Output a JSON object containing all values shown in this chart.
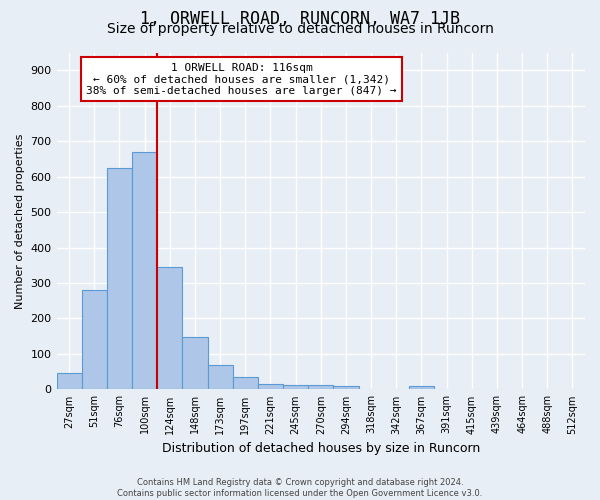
{
  "title": "1, ORWELL ROAD, RUNCORN, WA7 1JB",
  "subtitle": "Size of property relative to detached houses in Runcorn",
  "xlabel": "Distribution of detached houses by size in Runcorn",
  "ylabel": "Number of detached properties",
  "bar_labels": [
    "27sqm",
    "51sqm",
    "76sqm",
    "100sqm",
    "124sqm",
    "148sqm",
    "173sqm",
    "197sqm",
    "221sqm",
    "245sqm",
    "270sqm",
    "294sqm",
    "318sqm",
    "342sqm",
    "367sqm",
    "391sqm",
    "415sqm",
    "439sqm",
    "464sqm",
    "488sqm",
    "512sqm"
  ],
  "bar_values": [
    45,
    280,
    625,
    670,
    345,
    148,
    68,
    35,
    15,
    13,
    12,
    10,
    0,
    0,
    10,
    0,
    0,
    0,
    0,
    0,
    0
  ],
  "bar_color": "#aec6e8",
  "bar_edgecolor": "#5b9bd5",
  "vline_x": 4,
  "vline_color": "#cc0000",
  "annotation_text": "1 ORWELL ROAD: 116sqm\n← 60% of detached houses are smaller (1,342)\n38% of semi-detached houses are larger (847) →",
  "annotation_box_color": "#ffffff",
  "annotation_box_edgecolor": "#cc0000",
  "ylim": [
    0,
    950
  ],
  "yticks": [
    0,
    100,
    200,
    300,
    400,
    500,
    600,
    700,
    800,
    900
  ],
  "background_color": "#e8eef5",
  "grid_color": "#ffffff",
  "title_fontsize": 12,
  "subtitle_fontsize": 10,
  "footer_text": "Contains HM Land Registry data © Crown copyright and database right 2024.\nContains public sector information licensed under the Open Government Licence v3.0."
}
